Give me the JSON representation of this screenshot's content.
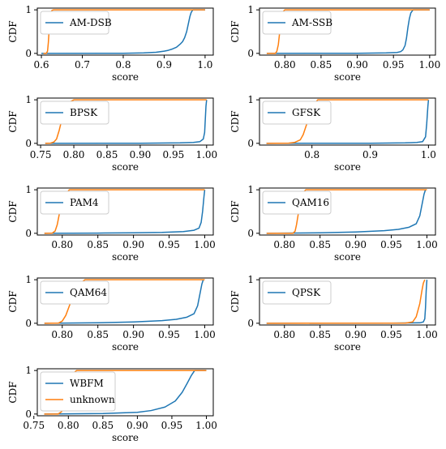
{
  "colors": {
    "known": "#1f77b4",
    "unknown": "#ff7f0e",
    "axis": "#000000",
    "legend_border": "#cccccc"
  },
  "legend_placement": "upper-left",
  "chart_data": [
    {
      "type": "line",
      "title": "",
      "xlabel": "score",
      "ylabel": "CDF",
      "xlim": [
        0.59,
        1.02
      ],
      "ylim": [
        -0.04,
        1.04
      ],
      "xticks": [
        0.6,
        0.7,
        0.8,
        0.9,
        1.0
      ],
      "xtick_labels": [
        "0.6",
        "0.7",
        "0.8",
        "0.9",
        "1.0"
      ],
      "yticks": [
        0,
        1
      ],
      "ytick_labels": [
        "0",
        "1"
      ],
      "grid": false,
      "series": [
        {
          "name": "AM-DSB",
          "color_key": "known",
          "x": [
            0.6,
            0.8,
            0.85,
            0.88,
            0.9,
            0.91,
            0.92,
            0.93,
            0.94,
            0.945,
            0.95,
            0.955,
            0.96,
            0.963,
            0.966,
            0.97,
            1.0
          ],
          "y": [
            0,
            0.003,
            0.01,
            0.025,
            0.05,
            0.07,
            0.1,
            0.14,
            0.22,
            0.27,
            0.36,
            0.5,
            0.72,
            0.85,
            0.94,
            1.0,
            1.0
          ]
        },
        {
          "name": "",
          "color_key": "unknown",
          "x": [
            0.605,
            0.612,
            0.615,
            0.617,
            0.619,
            0.621,
            0.623,
            0.626,
            0.63,
            1.0
          ],
          "y": [
            0,
            0,
            0.05,
            0.25,
            0.55,
            0.8,
            0.93,
            0.99,
            1.0,
            1.0
          ]
        }
      ]
    },
    {
      "type": "line",
      "title": "",
      "xlabel": "score",
      "ylabel": "CDF",
      "xlim": [
        0.765,
        1.008
      ],
      "ylim": [
        -0.04,
        1.04
      ],
      "xticks": [
        0.8,
        0.85,
        0.9,
        0.95,
        1.0
      ],
      "xtick_labels": [
        "0.80",
        "0.85",
        "0.90",
        "0.95",
        "1.00"
      ],
      "yticks": [
        0,
        1
      ],
      "ytick_labels": [
        "0",
        "1"
      ],
      "grid": false,
      "series": [
        {
          "name": "AM-SSB",
          "color_key": "known",
          "x": [
            0.775,
            0.9,
            0.94,
            0.955,
            0.96,
            0.963,
            0.966,
            0.968,
            0.97,
            0.972,
            0.974,
            0.977,
            1.0
          ],
          "y": [
            0,
            0.002,
            0.01,
            0.02,
            0.04,
            0.08,
            0.18,
            0.35,
            0.6,
            0.8,
            0.93,
            1.0,
            1.0
          ]
        },
        {
          "name": "",
          "color_key": "unknown",
          "x": [
            0.775,
            0.787,
            0.789,
            0.791,
            0.793,
            0.795,
            0.797,
            0.8,
            1.0
          ],
          "y": [
            0,
            0,
            0.05,
            0.2,
            0.5,
            0.8,
            0.95,
            1.0,
            1.0
          ]
        }
      ]
    },
    {
      "type": "line",
      "title": "",
      "xlabel": "score",
      "ylabel": "CDF",
      "xlim": [
        0.745,
        1.01
      ],
      "ylim": [
        -0.04,
        1.04
      ],
      "xticks": [
        0.75,
        0.8,
        0.85,
        0.9,
        0.95,
        1.0
      ],
      "xtick_labels": [
        "0.75",
        "0.80",
        "0.85",
        "0.90",
        "0.95",
        "1.00"
      ],
      "yticks": [
        0,
        1
      ],
      "ytick_labels": [
        "0",
        "1"
      ],
      "grid": false,
      "series": [
        {
          "name": "BPSK",
          "color_key": "known",
          "x": [
            0.757,
            0.9,
            0.96,
            0.98,
            0.99,
            0.995,
            0.997,
            0.998,
            0.999,
            1.0
          ],
          "y": [
            0,
            0.003,
            0.01,
            0.02,
            0.04,
            0.1,
            0.25,
            0.55,
            0.85,
            1.0
          ]
        },
        {
          "name": "",
          "color_key": "unknown",
          "x": [
            0.757,
            0.765,
            0.77,
            0.774,
            0.778,
            0.782,
            0.786,
            0.79,
            0.795,
            0.8,
            1.0
          ],
          "y": [
            0,
            0.005,
            0.03,
            0.1,
            0.3,
            0.55,
            0.75,
            0.88,
            0.96,
            1.0,
            1.0
          ]
        }
      ]
    },
    {
      "type": "line",
      "title": "",
      "xlabel": "score",
      "ylabel": "CDF",
      "xlim": [
        0.71,
        1.012
      ],
      "ylim": [
        -0.04,
        1.04
      ],
      "xticks": [
        0.8,
        0.9,
        1.0
      ],
      "xtick_labels": [
        "0.8",
        "0.9",
        "1.0"
      ],
      "yticks": [
        0,
        1
      ],
      "ytick_labels": [
        "0",
        "1"
      ],
      "grid": false,
      "series": [
        {
          "name": "GFSK",
          "color_key": "known",
          "x": [
            0.722,
            0.9,
            0.96,
            0.98,
            0.99,
            0.995,
            0.997,
            0.999,
            1.0
          ],
          "y": [
            0,
            0.003,
            0.01,
            0.02,
            0.04,
            0.15,
            0.45,
            0.85,
            1.0
          ]
        },
        {
          "name": "",
          "color_key": "unknown",
          "x": [
            0.722,
            0.76,
            0.77,
            0.78,
            0.785,
            0.79,
            0.795,
            0.8,
            0.805,
            0.81,
            1.0
          ],
          "y": [
            0,
            0.005,
            0.02,
            0.08,
            0.2,
            0.4,
            0.6,
            0.78,
            0.92,
            1.0,
            1.0
          ]
        }
      ]
    },
    {
      "type": "line",
      "title": "",
      "xlabel": "score",
      "ylabel": "CDF",
      "xlim": [
        0.765,
        1.012
      ],
      "ylim": [
        -0.04,
        1.04
      ],
      "xticks": [
        0.8,
        0.85,
        0.9,
        0.95,
        1.0
      ],
      "xtick_labels": [
        "0.80",
        "0.85",
        "0.90",
        "0.95",
        "1.00"
      ],
      "yticks": [
        0,
        1
      ],
      "ytick_labels": [
        "0",
        "1"
      ],
      "grid": false,
      "series": [
        {
          "name": "PAM4",
          "color_key": "known",
          "x": [
            0.775,
            0.85,
            0.9,
            0.94,
            0.97,
            0.985,
            0.992,
            0.995,
            0.997,
            0.999,
            1.0
          ],
          "y": [
            0,
            0.005,
            0.01,
            0.02,
            0.04,
            0.07,
            0.12,
            0.25,
            0.5,
            0.85,
            1.0
          ]
        },
        {
          "name": "",
          "color_key": "unknown",
          "x": [
            0.775,
            0.786,
            0.79,
            0.793,
            0.796,
            0.8,
            0.804,
            0.81,
            1.0
          ],
          "y": [
            0,
            0.005,
            0.05,
            0.2,
            0.45,
            0.7,
            0.88,
            1.0,
            1.0
          ]
        }
      ]
    },
    {
      "type": "line",
      "title": "",
      "xlabel": "score",
      "ylabel": "CDF",
      "xlim": [
        0.765,
        1.012
      ],
      "ylim": [
        -0.04,
        1.04
      ],
      "xticks": [
        0.8,
        0.85,
        0.9,
        0.95,
        1.0
      ],
      "xtick_labels": [
        "0.80",
        "0.85",
        "0.90",
        "0.95",
        "1.00"
      ],
      "yticks": [
        0,
        1
      ],
      "ytick_labels": [
        "0",
        "1"
      ],
      "grid": false,
      "series": [
        {
          "name": "QAM16",
          "color_key": "known",
          "x": [
            0.775,
            0.85,
            0.9,
            0.94,
            0.96,
            0.975,
            0.985,
            0.99,
            0.993,
            0.996,
            0.998
          ],
          "y": [
            0,
            0.01,
            0.03,
            0.06,
            0.09,
            0.14,
            0.22,
            0.4,
            0.65,
            0.9,
            1.0
          ]
        },
        {
          "name": "",
          "color_key": "unknown",
          "x": [
            0.775,
            0.812,
            0.815,
            0.817,
            0.82,
            0.823,
            0.826,
            0.83,
            1.0
          ],
          "y": [
            0,
            0,
            0.05,
            0.2,
            0.5,
            0.78,
            0.93,
            1.0,
            1.0
          ]
        }
      ]
    },
    {
      "type": "line",
      "title": "",
      "xlabel": "score",
      "ylabel": "CDF",
      "xlim": [
        0.765,
        1.012
      ],
      "ylim": [
        -0.04,
        1.04
      ],
      "xticks": [
        0.8,
        0.85,
        0.9,
        0.95,
        1.0
      ],
      "xtick_labels": [
        "0.80",
        "0.85",
        "0.90",
        "0.95",
        "1.00"
      ],
      "yticks": [
        0,
        1
      ],
      "ytick_labels": [
        "0",
        "1"
      ],
      "grid": false,
      "series": [
        {
          "name": "QAM64",
          "color_key": "known",
          "x": [
            0.775,
            0.85,
            0.9,
            0.94,
            0.96,
            0.975,
            0.985,
            0.99,
            0.993,
            0.996,
            0.998
          ],
          "y": [
            0,
            0.01,
            0.03,
            0.06,
            0.09,
            0.14,
            0.22,
            0.4,
            0.65,
            0.9,
            1.0
          ]
        },
        {
          "name": "",
          "color_key": "unknown",
          "x": [
            0.775,
            0.795,
            0.8,
            0.805,
            0.81,
            0.815,
            0.82,
            0.826,
            0.832,
            1.0
          ],
          "y": [
            0,
            0.005,
            0.05,
            0.18,
            0.4,
            0.62,
            0.8,
            0.93,
            1.0,
            1.0
          ]
        }
      ]
    },
    {
      "type": "line",
      "title": "",
      "xlabel": "score",
      "ylabel": "CDF",
      "xlim": [
        0.765,
        1.012
      ],
      "ylim": [
        -0.04,
        1.04
      ],
      "xticks": [
        0.8,
        0.85,
        0.9,
        0.95,
        1.0
      ],
      "xtick_labels": [
        "0.80",
        "0.85",
        "0.90",
        "0.95",
        "1.00"
      ],
      "yticks": [
        0,
        1
      ],
      "ytick_labels": [
        "0",
        "1"
      ],
      "grid": false,
      "series": [
        {
          "name": "QPSK",
          "color_key": "known",
          "x": [
            0.775,
            0.95,
            0.99,
            0.995,
            0.997,
            0.998,
            0.999,
            1.0
          ],
          "y": [
            0,
            0.002,
            0.01,
            0.03,
            0.1,
            0.35,
            0.75,
            1.0
          ]
        },
        {
          "name": "",
          "color_key": "unknown",
          "x": [
            0.775,
            0.97,
            0.98,
            0.985,
            0.99,
            0.993,
            0.995,
            0.997
          ],
          "y": [
            0,
            0.005,
            0.03,
            0.15,
            0.45,
            0.75,
            0.92,
            1.0
          ]
        }
      ]
    },
    {
      "type": "line",
      "title": "",
      "xlabel": "score",
      "ylabel": "CDF",
      "xlim": [
        0.755,
        1.01
      ],
      "ylim": [
        -0.04,
        1.04
      ],
      "xticks": [
        0.75,
        0.8,
        0.85,
        0.9,
        0.95,
        1.0
      ],
      "xtick_labels": [
        "0.75",
        "0.80",
        "0.85",
        "0.90",
        "0.95",
        "1.00"
      ],
      "yticks": [
        0,
        1
      ],
      "ytick_labels": [
        "0",
        "1"
      ],
      "grid": false,
      "series": [
        {
          "name": "WBFM",
          "color_key": "known",
          "x": [
            0.765,
            0.85,
            0.9,
            0.92,
            0.94,
            0.955,
            0.965,
            0.972,
            0.978,
            0.983,
            1.0
          ],
          "y": [
            0,
            0.01,
            0.04,
            0.08,
            0.16,
            0.3,
            0.5,
            0.7,
            0.88,
            1.0,
            1.0
          ]
        },
        {
          "name": "unknown",
          "color_key": "unknown",
          "x": [
            0.765,
            0.785,
            0.79,
            0.795,
            0.8,
            0.804,
            0.808,
            0.812,
            1.0
          ],
          "y": [
            0,
            0,
            0.05,
            0.2,
            0.5,
            0.78,
            0.95,
            1.0,
            1.0
          ]
        }
      ]
    }
  ]
}
